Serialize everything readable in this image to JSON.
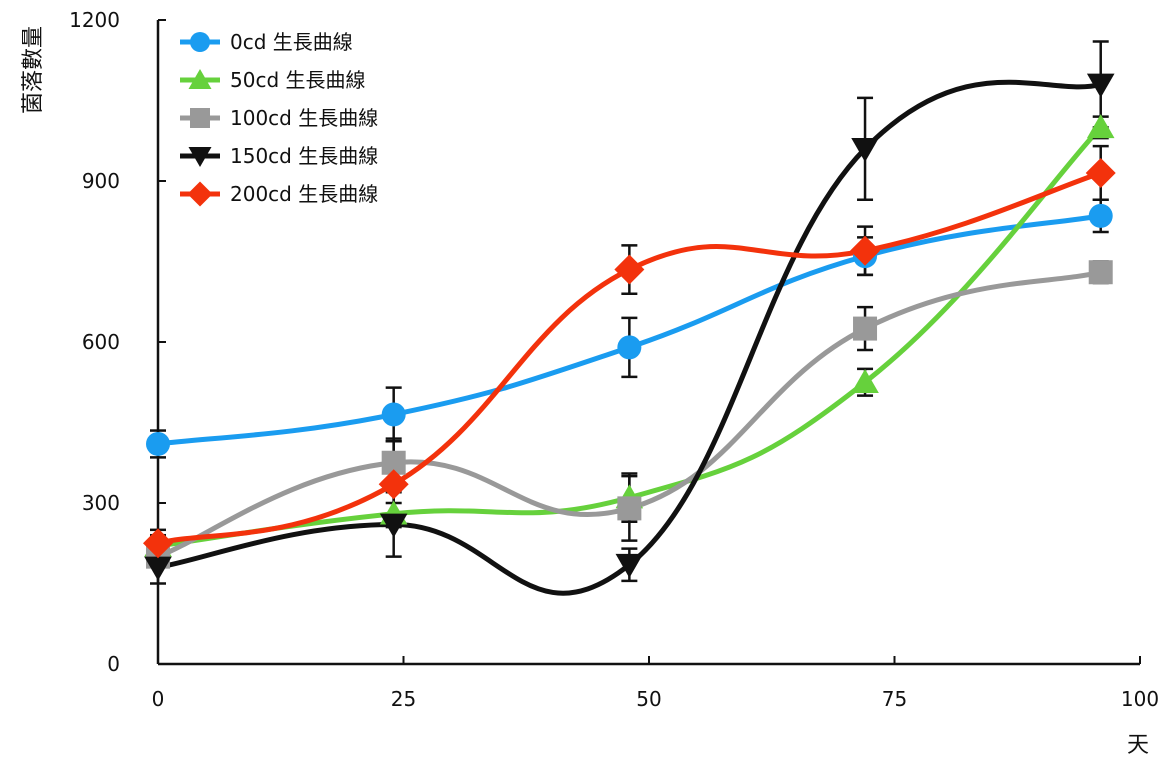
{
  "chart_data": {
    "type": "line",
    "title": "",
    "xlabel": "天",
    "ylabel": "菌落數量",
    "xlim": [
      0,
      100
    ],
    "ylim": [
      0,
      1200
    ],
    "x_ticks": [
      0,
      25,
      50,
      75,
      100
    ],
    "y_ticks": [
      0,
      300,
      600,
      900,
      1200
    ],
    "grid": false,
    "smooth": true,
    "legend_position": "top-left",
    "x": [
      0,
      24,
      48,
      72,
      96
    ],
    "series": [
      {
        "name": "0cd 生長曲線",
        "color": "#1a9cf0",
        "marker": "circle",
        "values": [
          410,
          465,
          590,
          760,
          835
        ],
        "errors": [
          25,
          50,
          55,
          35,
          30
        ]
      },
      {
        "name": "50cd 生長曲線",
        "color": "#66d13c",
        "marker": "triangle-up",
        "values": [
          220,
          280,
          310,
          525,
          1000
        ],
        "errors": [
          20,
          20,
          45,
          25,
          20
        ]
      },
      {
        "name": "100cd 生長曲線",
        "color": "#999999",
        "marker": "square",
        "values": [
          200,
          375,
          290,
          625,
          730
        ],
        "errors": [
          15,
          45,
          60,
          40,
          20
        ]
      },
      {
        "name": "150cd 生長曲線",
        "color": "#111111",
        "marker": "triangle-down",
        "values": [
          180,
          260,
          185,
          960,
          1080
        ],
        "errors": [
          30,
          60,
          30,
          95,
          80
        ]
      },
      {
        "name": "200cd 生長曲線",
        "color": "#f3320c",
        "marker": "diamond",
        "values": [
          225,
          335,
          735,
          770,
          915
        ],
        "errors": [
          25,
          80,
          45,
          45,
          50
        ]
      }
    ]
  }
}
